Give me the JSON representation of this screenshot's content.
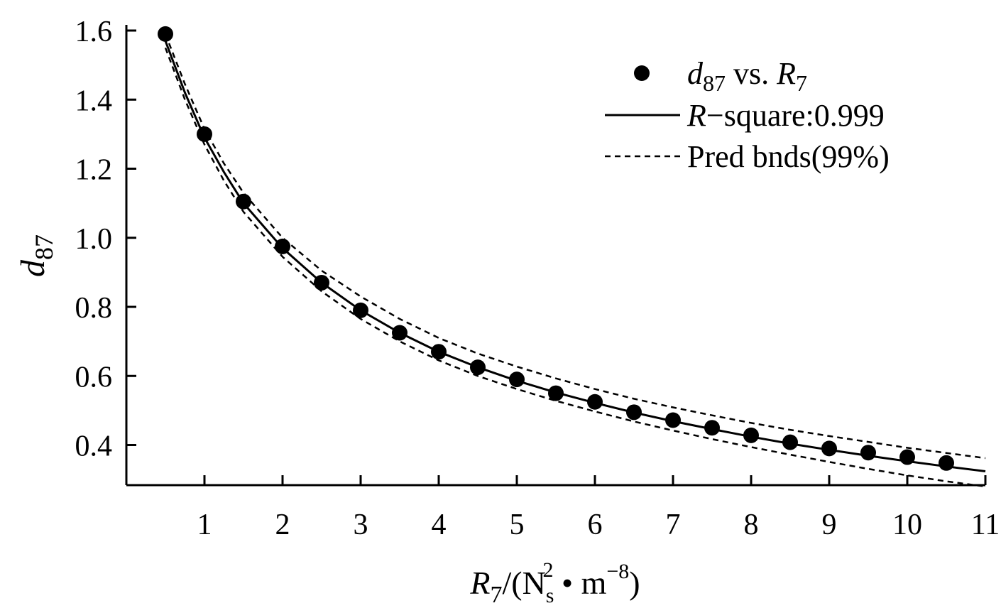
{
  "chart_data": {
    "type": "scatter",
    "xlim": [
      0,
      11
    ],
    "ylim": [
      0.29,
      1.6
    ],
    "x_ticks": [
      1,
      2,
      3,
      4,
      5,
      6,
      7,
      8,
      9,
      10,
      11
    ],
    "y_ticks": [
      0.4,
      0.6,
      0.8,
      1.0,
      1.2,
      1.4,
      1.6
    ],
    "x_tick_labels": [
      "1",
      "2",
      "3",
      "4",
      "5",
      "6",
      "7",
      "8",
      "9",
      "10",
      "11"
    ],
    "y_tick_labels": [
      "0.4",
      "0.6",
      "0.8",
      "1.0",
      "1.2",
      "1.4",
      "1.6"
    ],
    "xlabel": {
      "main": "R",
      "sub": "7",
      "open": "/(N",
      "sub2": "s",
      "sup2": "2",
      "mid": " • m",
      "sup": "−8",
      "close": ")"
    },
    "ylabel": {
      "main": "d",
      "sub": "87"
    },
    "legend": {
      "position": "top-right",
      "entries": [
        {
          "kind": "points",
          "parts": {
            "a": "d",
            "a_sub": "87",
            "mid": " vs. ",
            "b": "R",
            "b_sub": "7"
          }
        },
        {
          "kind": "fit",
          "parts": {
            "a": "R",
            "rest": "−square:0.999"
          }
        },
        {
          "kind": "bounds",
          "parts": {
            "text": "Pred bnds(99%)"
          }
        }
      ]
    },
    "grid": false,
    "series": [
      {
        "kind": "points",
        "x": [
          0.5,
          1.0,
          1.5,
          2.0,
          2.5,
          3.0,
          3.5,
          4.0,
          4.5,
          5.0,
          5.5,
          6.0,
          6.5,
          7.0,
          7.5,
          8.0,
          8.5,
          9.0,
          9.5,
          10.0,
          10.5
        ],
        "y": [
          1.59,
          1.3,
          1.105,
          0.975,
          0.87,
          0.79,
          0.725,
          0.67,
          0.625,
          0.59,
          0.55,
          0.525,
          0.495,
          0.472,
          0.45,
          0.428,
          0.408,
          0.39,
          0.378,
          0.365,
          0.348
        ]
      },
      {
        "kind": "fit",
        "x": [
          0.5,
          0.75,
          1.0,
          1.25,
          1.5,
          2.0,
          2.5,
          3.0,
          3.5,
          4.0,
          4.5,
          5.0,
          5.5,
          6.0,
          6.5,
          7.0,
          7.5,
          8.0,
          8.5,
          9.0,
          9.5,
          10.0,
          10.5,
          11.0
        ],
        "y": [
          1.57,
          1.42,
          1.29,
          1.19,
          1.1,
          0.97,
          0.87,
          0.79,
          0.725,
          0.67,
          0.625,
          0.586,
          0.552,
          0.522,
          0.494,
          0.469,
          0.446,
          0.424,
          0.404,
          0.386,
          0.369,
          0.353,
          0.338,
          0.324
        ]
      },
      {
        "kind": "bound-upper",
        "x": [
          0.5,
          0.75,
          1.0,
          1.25,
          1.5,
          2.0,
          2.5,
          3.0,
          3.5,
          4.0,
          4.5,
          5.0,
          5.5,
          6.0,
          6.5,
          7.0,
          7.5,
          8.0,
          8.5,
          9.0,
          9.5,
          10.0,
          10.5,
          11.0
        ],
        "y": [
          1.59,
          1.445,
          1.315,
          1.215,
          1.13,
          1.0,
          0.905,
          0.83,
          0.765,
          0.71,
          0.665,
          0.627,
          0.593,
          0.562,
          0.534,
          0.509,
          0.486,
          0.464,
          0.444,
          0.426,
          0.409,
          0.392,
          0.377,
          0.362
        ]
      },
      {
        "kind": "bound-lower",
        "x": [
          0.5,
          0.75,
          1.0,
          1.25,
          1.5,
          2.0,
          2.5,
          3.0,
          3.5,
          4.0,
          4.5,
          5.0,
          5.5,
          6.0,
          6.5,
          7.0,
          7.5,
          8.0,
          8.5,
          9.0,
          9.5,
          10.0,
          10.5,
          11.0
        ],
        "y": [
          1.55,
          1.4,
          1.27,
          1.165,
          1.075,
          0.945,
          0.845,
          0.765,
          0.7,
          0.645,
          0.6,
          0.562,
          0.528,
          0.497,
          0.468,
          0.442,
          0.417,
          0.394,
          0.372,
          0.351,
          0.331,
          0.312,
          0.295,
          0.28
        ]
      }
    ]
  }
}
